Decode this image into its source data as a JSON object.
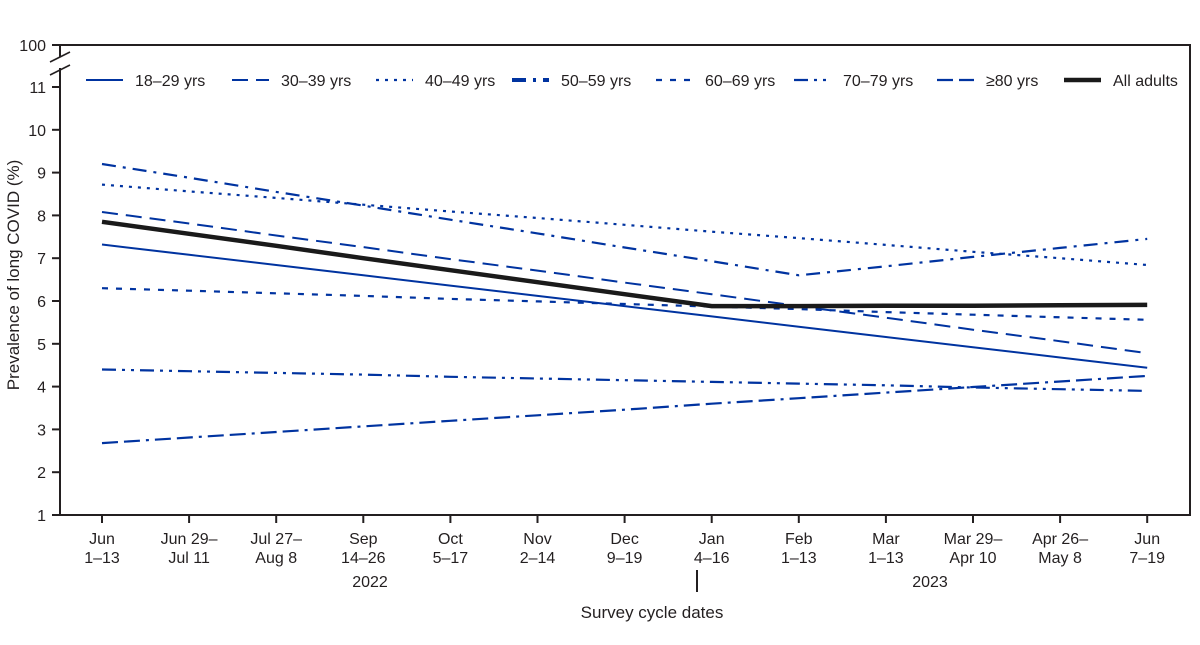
{
  "chart_data": {
    "type": "line",
    "xlabel": "Survey cycle dates",
    "ylabel": "Prevalence of long COVID (%)",
    "ylim": [
      1,
      11
    ],
    "y_ticks": [
      "1",
      "2",
      "3",
      "4",
      "5",
      "6",
      "7",
      "8",
      "9",
      "10",
      "11"
    ],
    "y_break_label": "100",
    "categories": [
      [
        "Jun",
        "1–13"
      ],
      [
        "Jun 29–",
        "Jul 11"
      ],
      [
        "Jul 27–",
        "Aug 8"
      ],
      [
        "Sep",
        "14–26"
      ],
      [
        "Oct",
        "5–17"
      ],
      [
        "Nov",
        "2–14"
      ],
      [
        "Dec",
        "9–19"
      ],
      [
        "Jan",
        "4–16"
      ],
      [
        "Feb",
        "1–13"
      ],
      [
        "Mar",
        "1–13"
      ],
      [
        "Mar 29–",
        "Apr 10"
      ],
      [
        "Apr 26–",
        "May 8"
      ],
      [
        "Jun",
        "7–19"
      ]
    ],
    "years": [
      "2022",
      "2023"
    ],
    "legend_position": "top",
    "grid": false,
    "series": [
      {
        "name": "18–29 yrs",
        "style": "solid",
        "color": "#0033a0",
        "values": [
          7.32,
          7.08,
          6.84,
          6.6,
          6.36,
          6.12,
          5.88,
          5.64,
          5.4,
          5.16,
          4.92,
          4.68,
          4.44
        ]
      },
      {
        "name": "30–39 yrs",
        "style": "dash",
        "color": "#0033a0",
        "values": [
          8.08,
          7.81,
          7.53,
          7.26,
          6.98,
          6.71,
          6.43,
          6.16,
          5.88,
          5.61,
          5.33,
          5.06,
          4.78
        ]
      },
      {
        "name": "40–49 yrs",
        "style": "dot",
        "color": "#0033a0",
        "values": [
          8.72,
          8.56,
          8.41,
          8.25,
          8.09,
          7.94,
          7.78,
          7.62,
          7.47,
          7.31,
          7.15,
          7.0,
          6.84
        ]
      },
      {
        "name": "50–59 yrs",
        "style": "dashdot",
        "color": "#0033a0",
        "values": [
          9.2,
          8.88,
          8.55,
          8.23,
          7.9,
          7.58,
          7.25,
          6.93,
          6.6,
          6.81,
          7.03,
          7.24,
          7.45
        ]
      },
      {
        "name": "60–69 yrs",
        "style": "shortdash",
        "color": "#0033a0",
        "values": [
          6.3,
          6.24,
          6.18,
          6.12,
          6.05,
          5.99,
          5.93,
          5.87,
          5.81,
          5.74,
          5.68,
          5.62,
          5.56
        ]
      },
      {
        "name": "70–79 yrs",
        "style": "dashdotdot",
        "color": "#0033a0",
        "values": [
          4.4,
          4.36,
          4.32,
          4.28,
          4.23,
          4.19,
          4.15,
          4.11,
          4.07,
          4.03,
          3.98,
          3.94,
          3.9
        ]
      },
      {
        "name": "≥80 yrs",
        "style": "dashdashdot",
        "color": "#0033a0",
        "values": [
          2.68,
          2.81,
          2.94,
          3.07,
          3.2,
          3.33,
          3.46,
          3.6,
          3.73,
          3.86,
          3.99,
          4.12,
          4.25
        ]
      },
      {
        "name": "All adults",
        "style": "thick",
        "color": "#1a1a1a",
        "values": [
          7.85,
          7.57,
          7.29,
          7.0,
          6.72,
          6.44,
          6.16,
          5.88,
          5.88,
          5.89,
          5.89,
          5.9,
          5.91
        ]
      }
    ]
  }
}
